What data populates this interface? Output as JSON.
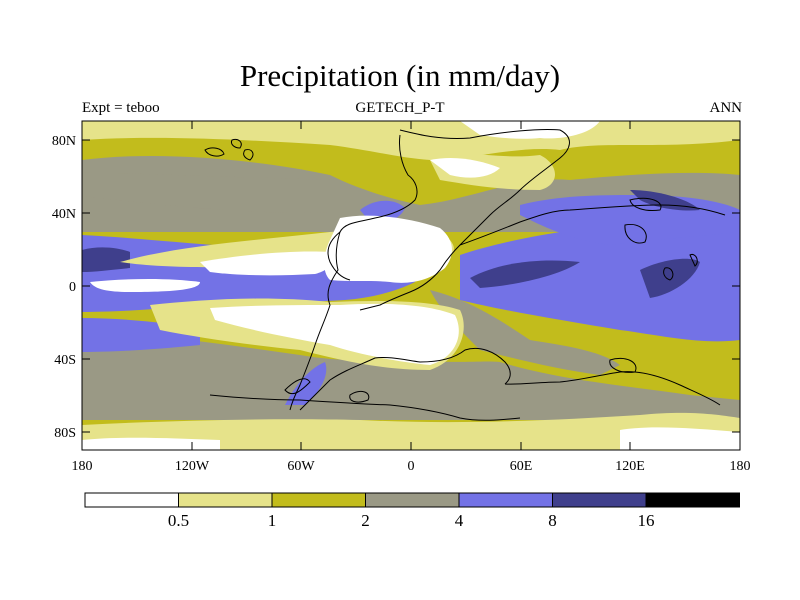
{
  "header": {
    "title": "Precipitation (in mm/day)",
    "subtitle": "GETECH_P-T",
    "left_label": "Expt = teboo",
    "right_label": "ANN"
  },
  "map": {
    "lat_ticks": [
      "80N",
      "40N",
      "0",
      "40S",
      "80S"
    ],
    "lon_ticks": [
      "180",
      "120W",
      "60W",
      "0",
      "60E",
      "120E",
      "180"
    ]
  },
  "colorbar": {
    "labels": [
      "0.5",
      "1",
      "2",
      "4",
      "8",
      "16"
    ],
    "colors": [
      "#ffffff",
      "#e6e38a",
      "#c2bc1c",
      "#9a9985",
      "#7372e6",
      "#3f3f8c",
      "#000000"
    ]
  },
  "colors": {
    "white": "#ffffff",
    "light_yellow": "#e6e38a",
    "olive": "#c2bc1c",
    "gray": "#9a9985",
    "blue": "#7372e6",
    "dark_blue": "#3f3f8c"
  }
}
